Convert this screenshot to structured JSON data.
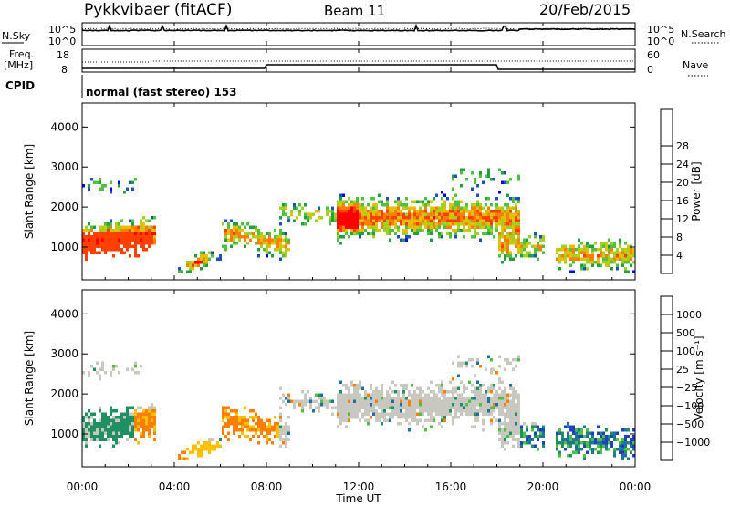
{
  "header": {
    "radar": "Pykkvibaer (fitACF)",
    "beam": "Beam 11",
    "date": "20/Feb/2015"
  },
  "top_panels": {
    "nsky_label": "N.Sky",
    "nsearch_label": "N.Search",
    "freq_label_1": "Freq.",
    "freq_label_2": "[MHz]",
    "nave_label": "Nave",
    "cpid_label": "CPID",
    "cpid_text": "normal (fast stereo) 153",
    "left_ticks_noise": [
      "10^5",
      "10^0"
    ],
    "right_ticks_noise": [
      "10^5",
      "10^0"
    ],
    "left_ticks_freq": [
      "18",
      "8"
    ],
    "right_ticks_nave": [
      "60",
      "0"
    ]
  },
  "chart_data": [
    {
      "type": "heatmap",
      "name": "Power",
      "ylabel": "Slant Range [km]",
      "ylim": [
        180,
        4600
      ],
      "yticks": [
        "1000",
        "2000",
        "3000",
        "4000"
      ],
      "colorbar_label": "Power [dB]",
      "colorbar_ticks": [
        "4",
        "8",
        "12",
        "16",
        "20",
        "24",
        "28"
      ],
      "colors": [
        "#0000ff",
        "#2050c0",
        "#20a040",
        "#50c040",
        "#a0d020",
        "#e0c000",
        "#ff8000",
        "#ff4000",
        "#ff0000"
      ]
    },
    {
      "type": "heatmap",
      "name": "Velocity",
      "ylabel": "Slant Range [km]",
      "ylim": [
        180,
        4600
      ],
      "yticks": [
        "1000",
        "2000",
        "3000",
        "4000"
      ],
      "colorbar_label": "Velocity [m s⁻¹]",
      "colorbar_ticks": [
        "1000",
        "500",
        "100",
        "25",
        "−25",
        "−100",
        "−500",
        "−1000"
      ],
      "colors": [
        "#2040c0",
        "#2070a0",
        "#209060",
        "#50c040",
        "#c8c8c0",
        "#ffc000",
        "#ff8000",
        "#ff4000",
        "#ff0000"
      ]
    }
  ],
  "xaxis": {
    "label": "Time UT",
    "ticks": [
      "00:00",
      "04:00",
      "08:00",
      "12:00",
      "16:00",
      "20:00",
      "00:00"
    ]
  }
}
